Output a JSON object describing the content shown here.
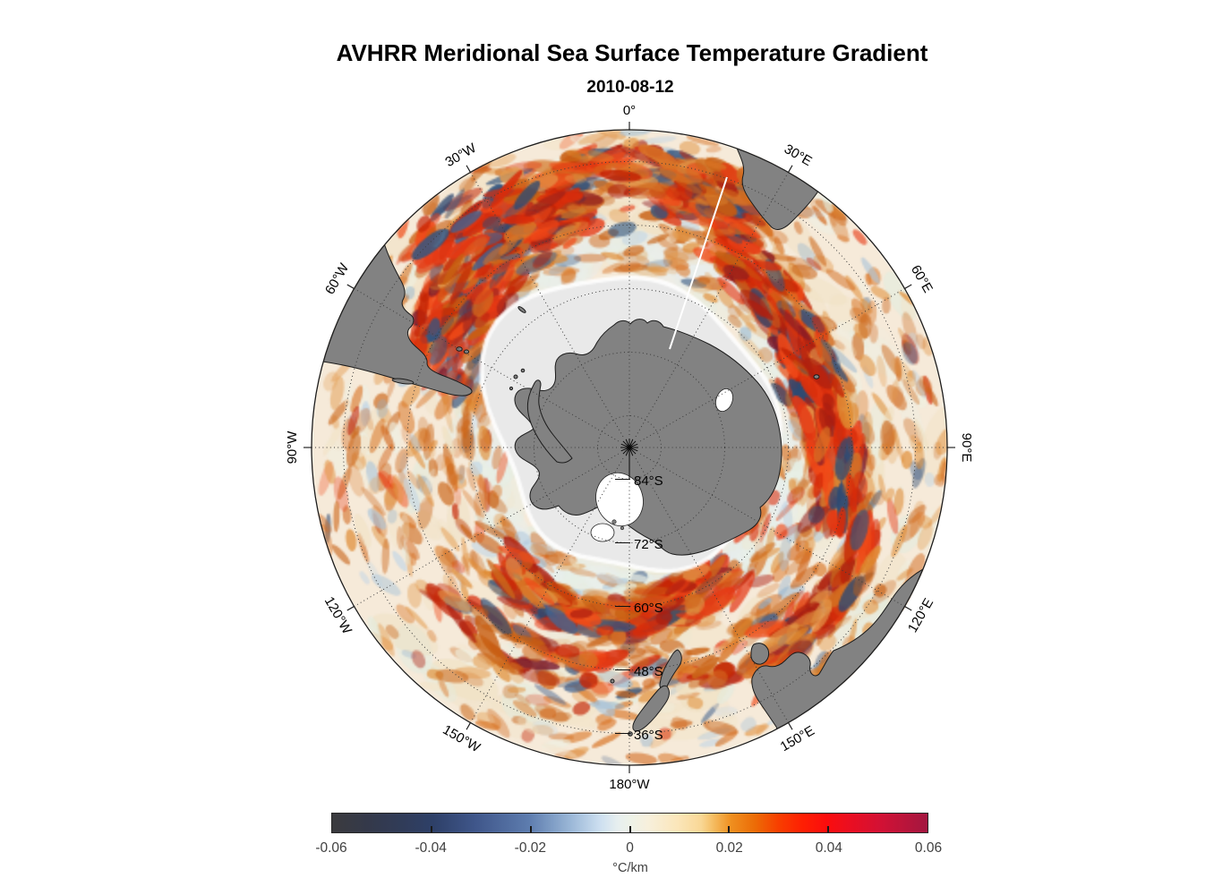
{
  "figure": {
    "title": "AVHRR Meridional Sea Surface Temperature Gradient",
    "subtitle": "2010-08-12"
  },
  "map": {
    "meridian_labels": [
      {
        "label": "0°"
      },
      {
        "label": "30°E"
      },
      {
        "label": "60°E"
      },
      {
        "label": "90°E"
      },
      {
        "label": "120°E"
      },
      {
        "label": "150°E"
      },
      {
        "label": "180°W"
      },
      {
        "label": "150°W"
      },
      {
        "label": "120°W"
      },
      {
        "label": "90°W"
      },
      {
        "label": "60°W"
      },
      {
        "label": "30°W"
      }
    ],
    "latitude_labels": [
      {
        "label": "84°S"
      },
      {
        "label": "72°S"
      },
      {
        "label": "60°S"
      },
      {
        "label": "48°S"
      },
      {
        "label": "36°S"
      }
    ],
    "colors": {
      "land": "#828282",
      "land_outline": "#1c1c1c",
      "ice": "#e9e9e9",
      "ocean_base": "#f6ead9",
      "graticule": "#3c3c3c",
      "border": "#1c1c1c"
    },
    "palette": {
      "base": "#f6ead9",
      "ice": "#e9e9e9",
      "warm": [
        "#e08a30",
        "#d97425",
        "#cc671a",
        "#c85f12",
        "#e39a4d",
        "#d2691e"
      ],
      "hot": [
        "#e63914",
        "#d92c0a",
        "#c42405",
        "#ad1f10",
        "#f04a18"
      ],
      "dark": [
        "#8f1f1f",
        "#7a1a2e"
      ],
      "blue": [
        "#2e4a72",
        "#33557f",
        "#46648f"
      ],
      "ltblue": [
        "#a9c4da",
        "#c2d6e6",
        "#8fb2cf"
      ],
      "pale": [
        "#f3e4c9",
        "#efe0c0",
        "#eef0e2",
        "#e3ecdf"
      ],
      "quiet": [
        "#e7efe7",
        "#eaf1ec",
        "#e9eef3"
      ]
    }
  },
  "colorbar": {
    "tick_labels": [
      "-0.06",
      "-0.04",
      "-0.02",
      "0",
      "0.02",
      "0.04",
      "0.06"
    ],
    "unit_label": "°C/km",
    "min": -0.06,
    "max": 0.06,
    "gradient_stops": [
      {
        "p": 0,
        "c": "#3b3b3e"
      },
      {
        "p": 6,
        "c": "#34394a"
      },
      {
        "p": 12,
        "c": "#303c59"
      },
      {
        "p": 17,
        "c": "#2e4068"
      },
      {
        "p": 24,
        "c": "#3f568a"
      },
      {
        "p": 33,
        "c": "#5d7cae"
      },
      {
        "p": 40,
        "c": "#9ab7d7"
      },
      {
        "p": 45,
        "c": "#cddff0"
      },
      {
        "p": 48,
        "c": "#e7efef"
      },
      {
        "p": 50,
        "c": "#edf2e8"
      },
      {
        "p": 53,
        "c": "#f7f0dc"
      },
      {
        "p": 58,
        "c": "#fbe6ba"
      },
      {
        "p": 62,
        "c": "#f9d795"
      },
      {
        "p": 64,
        "c": "#f5bd62"
      },
      {
        "p": 67,
        "c": "#ef8f20"
      },
      {
        "p": 71,
        "c": "#ec6c06"
      },
      {
        "p": 75,
        "c": "#f83e00"
      },
      {
        "p": 79,
        "c": "#fe1f03"
      },
      {
        "p": 83,
        "c": "#fb0d0d"
      },
      {
        "p": 87,
        "c": "#ea0e21"
      },
      {
        "p": 92,
        "c": "#d31134"
      },
      {
        "p": 100,
        "c": "#a31740"
      }
    ]
  },
  "chart_data": {
    "type": "heatmap",
    "title": "AVHRR Meridional Sea Surface Temperature Gradient",
    "date": "2010-08-12",
    "variable": "meridional sea surface temperature gradient",
    "units": "°C/km",
    "projection": "south polar stereographic, Antarctica centered, 0° meridian at top",
    "value_range": [
      -0.06,
      0.06
    ],
    "colorbar_ticks": [
      -0.06,
      -0.04,
      -0.02,
      0,
      0.02,
      0.04,
      0.06
    ],
    "graticule": {
      "parallels": [
        "84°S",
        "72°S",
        "60°S",
        "48°S",
        "36°S"
      ],
      "parallel_spacing_deg": 12,
      "meridians": [
        "0°",
        "30°E",
        "60°E",
        "90°E",
        "120°E",
        "150°E",
        "180°W",
        "150°W",
        "120°W",
        "90°W",
        "60°W",
        "30°W"
      ],
      "meridian_spacing_deg": 30,
      "outer_boundary_latitude": "about 30°S",
      "style": "dotted black lines, labels rotated tangentially around the circular boundary"
    },
    "visible_landmasses": [
      "Antarctica",
      "southern South America (Patagonia, Tierra del Fuego)",
      "Falkland Islands",
      "South Georgia",
      "southern Africa",
      "southern Australia",
      "Tasmania",
      "New Zealand",
      "Kerguelen"
    ],
    "notable_features": [
      "intense positive (red) gradient band following the Antarctic Circumpolar Current / Agulhas Return Current, strongest between 30°E and 100°E",
      "energetic mixed positive/negative (red and dark-blue) eddy field near the Brazil-Malvinas Confluence, 30°W-60°W",
      "dark-blue negative gradient patch against the South African coast (Agulhas retroflection)",
      "light grey sea-ice / no-data zone surrounding Antarctica, widest in the Weddell Sea sector, with white patches in the Ross Sea",
      "background ocean dominated by weak positive (pale orange) gradients",
      "thin white data-gap seam running inward from the South African coast"
    ]
  }
}
